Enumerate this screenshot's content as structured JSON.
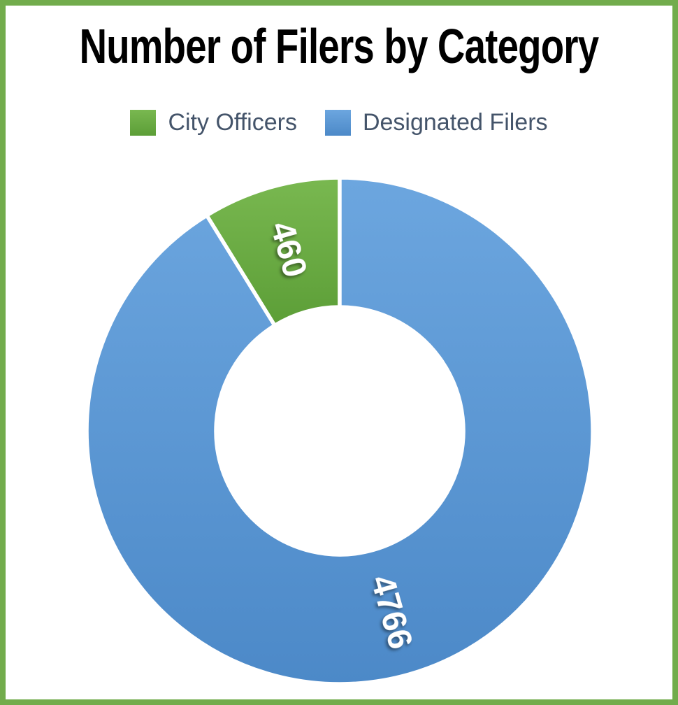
{
  "frame": {
    "border_color": "#72AC4C",
    "background": "#FFFFFF"
  },
  "title": {
    "text": "Number of Filers by Category",
    "color": "#000000"
  },
  "legend": {
    "position": "top",
    "text_color": "#44546A",
    "items": [
      {
        "label": "City Officers"
      },
      {
        "label": "Designated Filers"
      }
    ]
  },
  "chart_data": {
    "type": "pie",
    "subtype": "donut",
    "title": "Number of Filers by Category",
    "categories": [
      "City Officers",
      "Designated Filers"
    ],
    "values": [
      460,
      4766
    ],
    "data_labels": [
      "460",
      "4766"
    ],
    "colors": [
      "#69AC43",
      "#5B9BD5"
    ],
    "gradients": [
      {
        "top": "#79B850",
        "bottom": "#5C9E37"
      },
      {
        "top": "#6CA6DF",
        "bottom": "#4C89C8"
      }
    ],
    "label_color": "#FFFFFF",
    "separator_color": "#FFFFFF",
    "hole_ratio": 0.49,
    "legend_position": "top",
    "grid": false
  }
}
